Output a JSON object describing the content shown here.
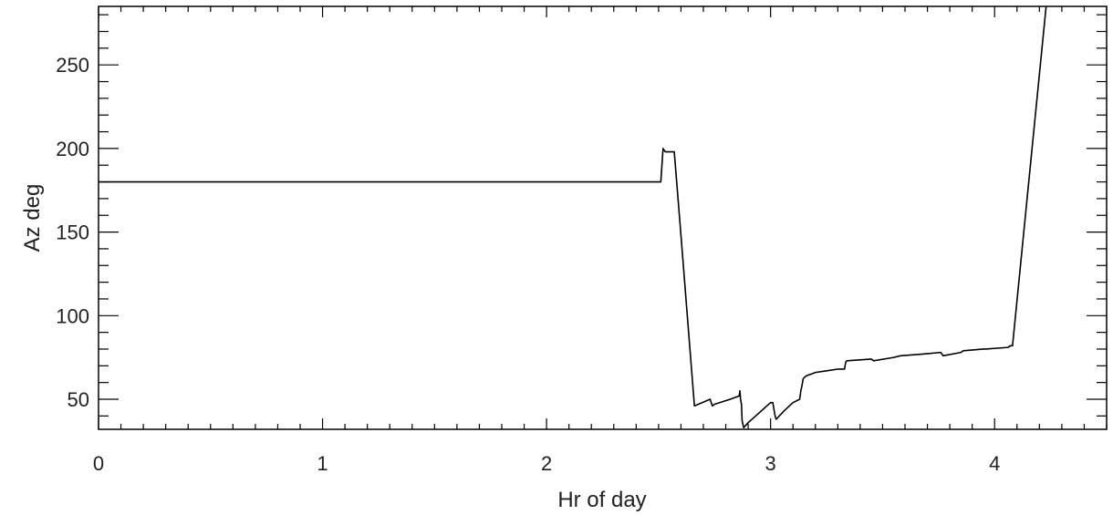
{
  "chart_data": {
    "type": "line",
    "title": "",
    "xlabel": "Hr of day",
    "ylabel": "Az deg",
    "xlim": [
      0,
      4.5
    ],
    "ylim": [
      32,
      285
    ],
    "xticks": [
      0,
      1,
      2,
      3,
      4
    ],
    "xtick_labels": [
      "0",
      "1",
      "2",
      "3",
      "4"
    ],
    "yticks": [
      50,
      100,
      150,
      200,
      250
    ],
    "ytick_labels": [
      "50",
      "100",
      "150",
      "200",
      "250"
    ],
    "x_minor_step": 0.1,
    "y_minor_step": 10,
    "grid": false,
    "legend": "none",
    "line_color": "#000000",
    "series": [
      {
        "x": [
          0,
          0.5,
          1.0,
          1.5,
          2.0,
          2.3,
          2.5,
          2.51,
          2.52,
          2.53,
          2.54,
          2.56,
          2.57,
          2.6,
          2.66,
          2.73,
          2.74,
          2.75,
          2.82,
          2.86,
          2.863,
          2.866,
          2.87,
          2.873,
          2.88,
          2.9,
          2.95,
          3.0,
          3.01,
          3.02,
          3.025,
          3.06,
          3.1,
          3.13,
          3.135,
          3.14,
          3.145,
          3.15,
          3.16,
          3.18,
          3.2,
          3.25,
          3.3,
          3.33,
          3.335,
          3.34,
          3.45,
          3.46,
          3.55,
          3.58,
          3.68,
          3.76,
          3.77,
          3.85,
          3.86,
          3.95,
          3.96,
          4.06,
          4.07,
          4.08,
          4.23
        ],
        "y": [
          180,
          180,
          180,
          180,
          180,
          180,
          180,
          180,
          200,
          198,
          198,
          198,
          198,
          148,
          46,
          50,
          46,
          47,
          50,
          52,
          55,
          50,
          47,
          37,
          33,
          36,
          42,
          48,
          48,
          40,
          38,
          43,
          48,
          50,
          55,
          58,
          62,
          63,
          64,
          65,
          66,
          67,
          68,
          68,
          72,
          73,
          74,
          73,
          75,
          76,
          77,
          78,
          76,
          78,
          79,
          80,
          80,
          81,
          82,
          82,
          285
        ]
      }
    ]
  }
}
